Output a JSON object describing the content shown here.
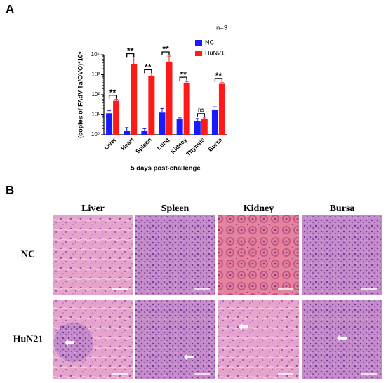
{
  "panel_a_label": "A",
  "chart_data": {
    "type": "bar",
    "y_label": "(copies of FAdV 8a/OVO)*10⁹",
    "x_label": "5 days post-challenge",
    "annotation": "n=3",
    "categories": [
      "Liver",
      "Heart",
      "Spleen",
      "Lung",
      "Kidney",
      "Thymus",
      "Bursa"
    ],
    "series": [
      {
        "name": "NC",
        "color": "#1a1aff",
        "values": [
          12,
          1.5,
          1.5,
          13,
          6,
          5,
          17
        ],
        "errors": [
          4,
          0.8,
          0.5,
          8,
          1,
          1.5,
          8
        ]
      },
      {
        "name": "HuN21",
        "color": "#ff1a1a",
        "values": [
          50,
          3500,
          900,
          4500,
          400,
          6,
          350
        ],
        "errors": [
          8,
          3500,
          200,
          4000,
          60,
          1,
          50
        ]
      }
    ],
    "significance": [
      "**",
      "**",
      "**",
      "**",
      "**",
      "ns",
      "**"
    ],
    "log_scale": true,
    "ylim": [
      1,
      10000
    ],
    "yticks": [
      {
        "value": 1,
        "label": "10⁰"
      },
      {
        "value": 10,
        "label": "10¹"
      },
      {
        "value": 100,
        "label": "10²"
      },
      {
        "value": 1000,
        "label": "10³"
      },
      {
        "value": 10000,
        "label": "10⁴"
      }
    ],
    "legend": "upper right"
  },
  "panel_b": {
    "label": "B",
    "columns": [
      "Liver",
      "Spleen",
      "Kidney",
      "Bursa"
    ],
    "rows": [
      "NC",
      "HuN21"
    ]
  }
}
